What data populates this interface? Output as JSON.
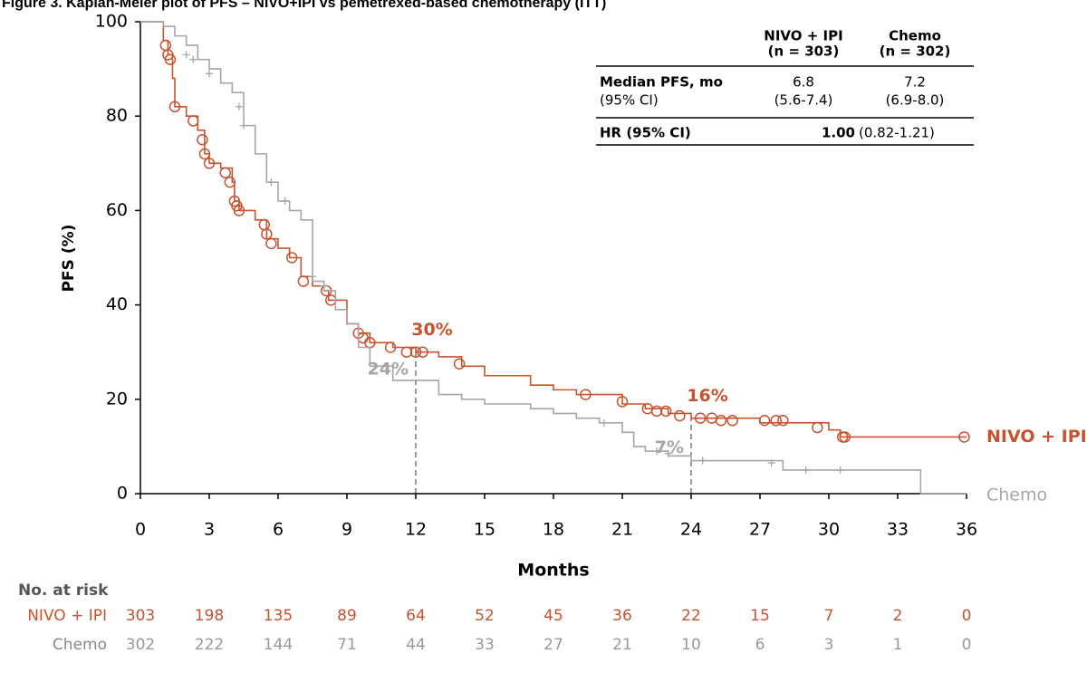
{
  "chart_data": {
    "type": "km",
    "title": "Figure 3. Kaplan-Meier plot of PFS – NIVO+IPI vs pemetrexed-based chemotherapy (ITT)",
    "x_label": "Months",
    "y_label": "PFS (%)",
    "xlim": [
      0,
      36
    ],
    "xticks": [
      0,
      3,
      6,
      9,
      12,
      15,
      18,
      21,
      24,
      27,
      30,
      33,
      36
    ],
    "ylim": [
      0,
      100
    ],
    "yticks": [
      0,
      20,
      40,
      60,
      80,
      100
    ],
    "series": [
      {
        "name": "NIVO + IPI",
        "color": "#c8532f",
        "marker": "circle",
        "x": [
          0,
          1,
          1.2,
          1.4,
          1.5,
          2,
          2.5,
          2.8,
          3,
          3.5,
          4,
          4.1,
          4.3,
          5,
          5.5,
          6,
          6.5,
          7,
          7.5,
          8,
          8.2,
          9,
          9.5,
          10,
          11,
          12,
          13,
          14,
          15,
          17,
          18,
          19,
          21,
          22,
          23,
          24,
          27,
          30,
          30.5,
          36
        ],
        "values": [
          100,
          96,
          93,
          88,
          82,
          80,
          77,
          72,
          70,
          69,
          66,
          62,
          60,
          58,
          54,
          52,
          50,
          46,
          44,
          43,
          41,
          36,
          34,
          32,
          31,
          30,
          29,
          27,
          25,
          23,
          22,
          21,
          19,
          18,
          17,
          16,
          15,
          13.5,
          12,
          12
        ],
        "censor_x": [
          1.1,
          1.2,
          1.3,
          1.5,
          2.3,
          2.7,
          2.8,
          3,
          3.7,
          3.9,
          4.1,
          4.2,
          4.3,
          5.4,
          5.5,
          5.7,
          6.6,
          7.1,
          8.1,
          8.3,
          9.5,
          9.7,
          10,
          10.9,
          11.6,
          12,
          12.3,
          13.9,
          19.4,
          21,
          22.1,
          22.5,
          22.9,
          23.5,
          24.4,
          24.9,
          25.3,
          25.8,
          27.2,
          27.7,
          28,
          29.5,
          30.6,
          30.7,
          35.9
        ],
        "censor_values": [
          95,
          93,
          92,
          82,
          79,
          75,
          72,
          70,
          68,
          66,
          62,
          61,
          60,
          57,
          55,
          53,
          50,
          45,
          43,
          41,
          34,
          33,
          32,
          31,
          30,
          30,
          30,
          27.5,
          21,
          19.5,
          18,
          17.5,
          17.5,
          16.5,
          16,
          16,
          15.5,
          15.5,
          15.5,
          15.5,
          15.5,
          14,
          12,
          12,
          12
        ]
      },
      {
        "name": "Chemo",
        "color": "#a6a6a6",
        "marker": "plus",
        "x": [
          0,
          1,
          1.5,
          2,
          2.5,
          3,
          3.5,
          4,
          4.5,
          5,
          5.5,
          6,
          6.5,
          7,
          7.5,
          8,
          8.5,
          9,
          9.5,
          10,
          11,
          12,
          13,
          14,
          15,
          17,
          18,
          19,
          20,
          21,
          21.5,
          22,
          23,
          24,
          25,
          27,
          28,
          31,
          34,
          34,
          36
        ],
        "values": [
          100,
          99,
          97,
          95,
          92,
          90,
          87,
          85,
          78,
          72,
          66,
          62,
          60,
          58,
          45,
          43,
          39,
          36,
          31,
          27,
          24,
          24,
          21,
          20,
          19,
          18,
          17,
          16,
          15,
          13,
          10,
          9,
          8,
          7,
          7,
          7,
          5,
          5,
          5,
          0,
          0
        ],
        "censor_x": [
          2,
          2.3,
          3,
          4.3,
          4.5,
          5.7,
          6.3,
          7.5,
          8,
          20.2,
          22.5,
          23,
          24.5,
          27.5,
          29,
          30.5
        ],
        "censor_values": [
          93,
          92,
          89,
          82,
          78,
          66,
          62,
          46,
          44,
          15,
          9,
          8.5,
          7,
          6.5,
          5,
          5
        ]
      }
    ],
    "milestones": [
      {
        "series": 0,
        "x": 12,
        "value": 30,
        "label": "30%"
      },
      {
        "series": 1,
        "x": 12,
        "value": 24,
        "label": "24%"
      },
      {
        "series": 0,
        "x": 24,
        "value": 16,
        "label": "16%"
      },
      {
        "series": 1,
        "x": 24,
        "value": 7,
        "label": "7%"
      }
    ],
    "inset_table": {
      "columns": [
        [
          "NIVO + IPI",
          "(n = 303)"
        ],
        [
          "Chemo",
          "(n = 302)"
        ]
      ],
      "rows": [
        [
          "Median PFS, mo",
          "6.8",
          "7.2"
        ],
        [
          "(95% CI)",
          "(5.6-7.4)",
          "(6.9-8.0)"
        ]
      ],
      "hr": {
        "label": "HR (95% CI)",
        "value": "1.00",
        "ci": "(0.82-1.21)"
      }
    },
    "risk_table": {
      "title": "No. at risk",
      "rows": [
        {
          "name": "NIVO + IPI",
          "values": [
            303,
            198,
            135,
            89,
            64,
            52,
            45,
            36,
            22,
            15,
            7,
            2,
            0
          ]
        },
        {
          "name": "Chemo",
          "values": [
            302,
            222,
            144,
            71,
            44,
            33,
            27,
            21,
            10,
            6,
            3,
            1,
            0
          ]
        }
      ]
    }
  }
}
